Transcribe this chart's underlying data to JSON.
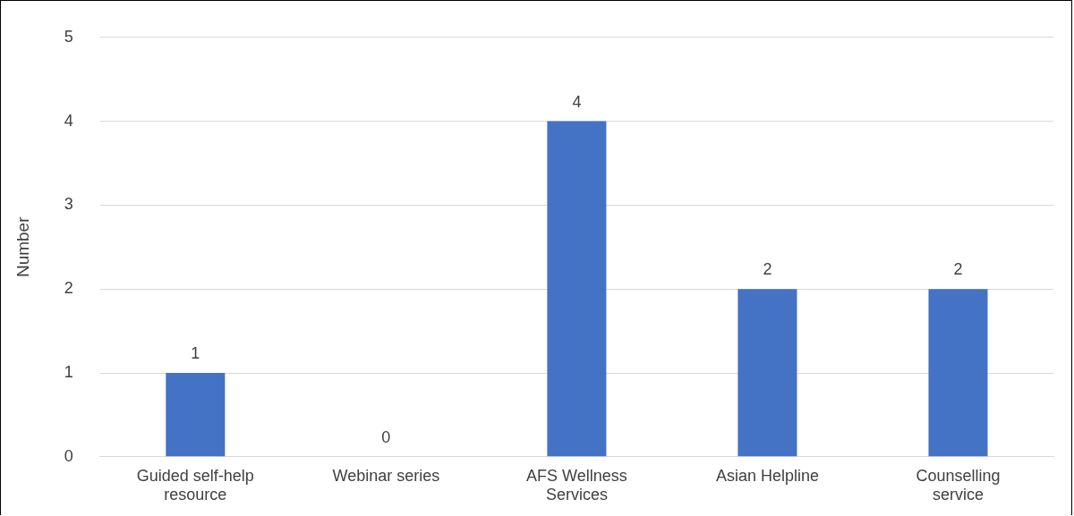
{
  "chart_data": {
    "type": "bar",
    "ylabel": "Number",
    "categories": [
      "Guided self-help resource",
      "Webinar series",
      "AFS Wellness Services",
      "Asian Helpline",
      "Counselling service"
    ],
    "values": [
      1,
      0,
      4,
      2,
      2
    ],
    "color": "#4472c4",
    "ylim": [
      0,
      5
    ],
    "yticks": [
      0,
      1,
      2,
      3,
      4,
      5
    ],
    "grid": "y",
    "legend": false,
    "data_labels": true
  }
}
